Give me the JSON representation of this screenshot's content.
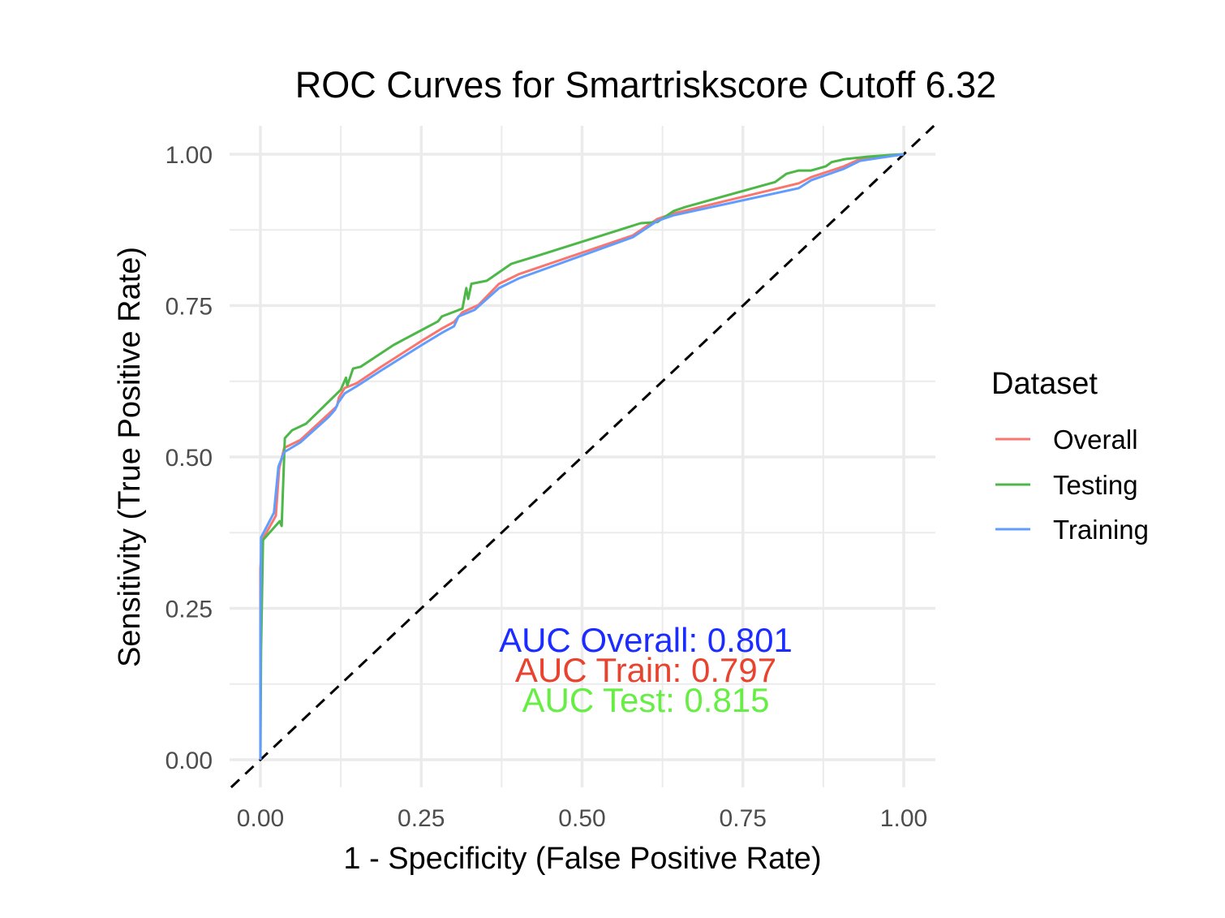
{
  "chart_data": {
    "type": "line",
    "title": "ROC Curves for Smartriskscore Cutoff 6.32",
    "xlabel": "1 - Specificity (False Positive Rate)",
    "ylabel": "Sensitivity (True Positive Rate)",
    "xlim": [
      0,
      1
    ],
    "ylim": [
      0,
      1
    ],
    "xticks": [
      "0.00",
      "0.25",
      "0.50",
      "0.75",
      "1.00"
    ],
    "yticks": [
      "0.00",
      "0.25",
      "0.50",
      "0.75",
      "1.00"
    ],
    "grid": true,
    "legend": {
      "title": "Dataset",
      "position": "right"
    },
    "reference_line": {
      "style": "dashed",
      "color": "#000000",
      "slope": 1,
      "intercept": 0
    },
    "series": [
      {
        "name": "Overall",
        "color": "#F8766D",
        "x": [
          0,
          0,
          0.003,
          0.024,
          0.029,
          0.037,
          0.062,
          0.106,
          0.119,
          0.122,
          0.131,
          0.15,
          0.188,
          0.251,
          0.282,
          0.301,
          0.314,
          0.339,
          0.371,
          0.402,
          0.579,
          0.617,
          0.642,
          0.837,
          0.856,
          0.907,
          0.932,
          1
        ],
        "y": [
          0,
          0.316,
          0.363,
          0.403,
          0.48,
          0.515,
          0.528,
          0.571,
          0.584,
          0.598,
          0.614,
          0.622,
          0.649,
          0.692,
          0.712,
          0.723,
          0.739,
          0.751,
          0.786,
          0.802,
          0.866,
          0.893,
          0.902,
          0.952,
          0.962,
          0.98,
          0.992,
          1
        ]
      },
      {
        "name": "Testing",
        "color": "#4DB748",
        "x": [
          0,
          0.001,
          0.004,
          0.03,
          0.033,
          0.038,
          0.049,
          0.071,
          0.125,
          0.133,
          0.135,
          0.144,
          0.156,
          0.207,
          0.276,
          0.282,
          0.314,
          0.32,
          0.323,
          0.328,
          0.352,
          0.39,
          0.427,
          0.591,
          0.617,
          0.627,
          0.642,
          0.661,
          0.8,
          0.818,
          0.837,
          0.856,
          0.879,
          0.888,
          0.909,
          0.945,
          0.982,
          1
        ],
        "y": [
          0,
          0.18,
          0.363,
          0.394,
          0.386,
          0.531,
          0.544,
          0.555,
          0.611,
          0.631,
          0.618,
          0.646,
          0.649,
          0.685,
          0.724,
          0.732,
          0.745,
          0.779,
          0.761,
          0.786,
          0.791,
          0.819,
          0.831,
          0.886,
          0.888,
          0.895,
          0.906,
          0.913,
          0.954,
          0.968,
          0.973,
          0.973,
          0.98,
          0.987,
          0.992,
          0.996,
          0.999,
          1
        ]
      },
      {
        "name": "Training",
        "color": "#619CFF",
        "x": [
          0,
          0,
          0.001,
          0.021,
          0.028,
          0.037,
          0.062,
          0.106,
          0.116,
          0.121,
          0.131,
          0.15,
          0.188,
          0.251,
          0.282,
          0.301,
          0.308,
          0.333,
          0.371,
          0.402,
          0.579,
          0.617,
          0.642,
          0.837,
          0.856,
          0.907,
          0.932,
          1
        ],
        "y": [
          0,
          0.223,
          0.367,
          0.408,
          0.484,
          0.508,
          0.524,
          0.566,
          0.578,
          0.59,
          0.605,
          0.617,
          0.643,
          0.685,
          0.705,
          0.716,
          0.732,
          0.743,
          0.779,
          0.795,
          0.863,
          0.89,
          0.899,
          0.944,
          0.957,
          0.976,
          0.989,
          1
        ]
      }
    ],
    "annotations": [
      {
        "text": "AUC Overall: 0.801",
        "color": "#1A2CFF"
      },
      {
        "text": "AUC Train: 0.797",
        "color": "#E8432F"
      },
      {
        "text": "AUC Test: 0.815",
        "color": "#66EE44"
      }
    ]
  }
}
